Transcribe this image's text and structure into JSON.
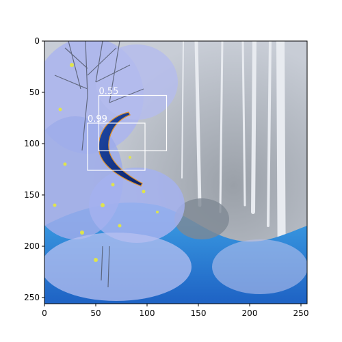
{
  "image": {
    "description_colors": {
      "sky": "#c8cdd6",
      "foliage_light": "#aab4ee",
      "foliage_deep": "#6f86e0",
      "water_blue": "#1f7ed0",
      "yellow_speckle": "#e6ea3c",
      "banana_body": "#0d2e86",
      "banana_edge": "#e0932d",
      "box_color": "#ffffff"
    },
    "x_range": [
      0,
      255
    ],
    "y_range": [
      0,
      255
    ]
  },
  "axes": {
    "x_ticks": [
      0,
      50,
      100,
      150,
      200,
      250
    ],
    "y_ticks": [
      0,
      50,
      100,
      150,
      200,
      250
    ],
    "x_tick_labels": [
      "0",
      "50",
      "100",
      "150",
      "200",
      "250"
    ],
    "y_tick_labels": [
      "0",
      "50",
      "100",
      "150",
      "200",
      "250"
    ]
  },
  "detections": [
    {
      "score": "0.55",
      "x0": 53,
      "y0": 53,
      "x1": 119,
      "y1": 107
    },
    {
      "score": "0.99",
      "x0": 42,
      "y0": 80,
      "x1": 98,
      "y1": 126
    }
  ]
}
